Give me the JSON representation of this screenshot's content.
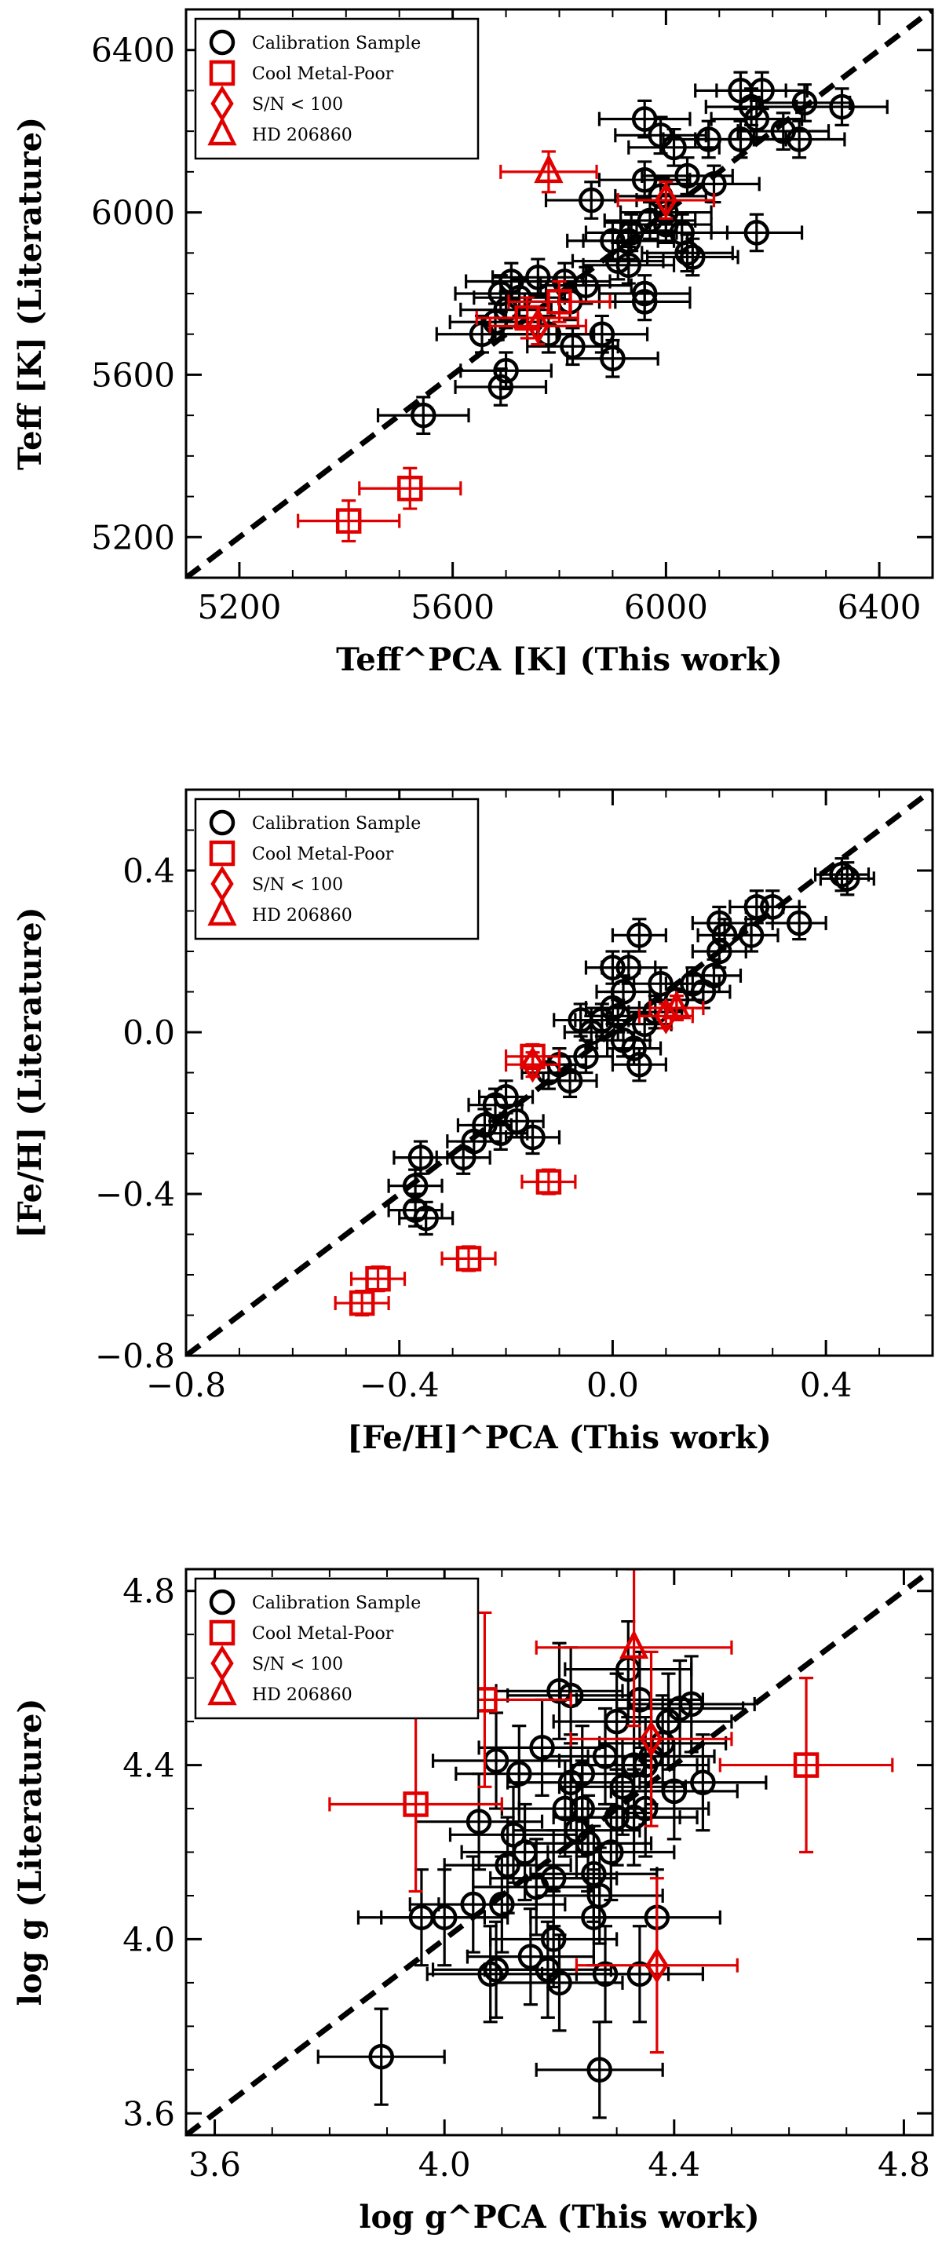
{
  "chart_data": [
    {
      "type": "scatter",
      "xlabel": "Teff^PCA [K] (This work)",
      "ylabel": "Teff [K] (Literature)",
      "xlim": [
        5100,
        6500
      ],
      "ylim": [
        5100,
        6500
      ],
      "xticks": [
        "5200",
        "5600",
        "6000",
        "6400"
      ],
      "yticks": [
        "5200",
        "5600",
        "6000",
        "6400"
      ],
      "one_to_one_line": true,
      "legend": [
        "Calibration Sample",
        "Cool Metal-Poor",
        "S/N < 100",
        "HD 206860"
      ],
      "series": [
        {
          "name": "Calibration Sample",
          "marker": "circle",
          "color": "#000000",
          "x_err": 85,
          "y_err": 45,
          "points": [
            [
              5545,
              5500
            ],
            [
              5690,
              5570
            ],
            [
              5700,
              5610
            ],
            [
              5655,
              5700
            ],
            [
              5680,
              5730
            ],
            [
              5700,
              5760
            ],
            [
              5725,
              5790
            ],
            [
              5690,
              5800
            ],
            [
              5710,
              5830
            ],
            [
              5760,
              5840
            ],
            [
              5810,
              5830
            ],
            [
              5820,
              5780
            ],
            [
              5850,
              5820
            ],
            [
              5880,
              5700
            ],
            [
              5900,
              5640
            ],
            [
              5825,
              5670
            ],
            [
              5780,
              5700
            ],
            [
              5960,
              5780
            ],
            [
              5960,
              5800
            ],
            [
              5930,
              5870
            ],
            [
              5900,
              5930
            ],
            [
              5935,
              5950
            ],
            [
              5970,
              5980
            ],
            [
              6000,
              5970
            ],
            [
              6030,
              5950
            ],
            [
              6040,
              5900
            ],
            [
              6050,
              5890
            ],
            [
              6170,
              5950
            ],
            [
              6000,
              6000
            ],
            [
              5990,
              6040
            ],
            [
              6040,
              6090
            ],
            [
              6090,
              6070
            ],
            [
              6015,
              6160
            ],
            [
              6080,
              6180
            ],
            [
              5860,
              6030
            ],
            [
              5960,
              6230
            ],
            [
              5990,
              6190
            ],
            [
              6140,
              6180
            ],
            [
              6170,
              6230
            ],
            [
              6220,
              6200
            ],
            [
              6250,
              6180
            ],
            [
              6160,
              6260
            ],
            [
              6180,
              6300
            ],
            [
              6140,
              6300
            ],
            [
              6260,
              6270
            ],
            [
              6330,
              6260
            ],
            [
              5960,
              6080
            ],
            [
              5930,
              5930
            ],
            [
              5910,
              5880
            ]
          ]
        },
        {
          "name": "Cool Metal-Poor",
          "marker": "square",
          "color": "#e00000",
          "x_err": 95,
          "y_err": 50,
          "points": [
            [
              5405,
              5240
            ],
            [
              5520,
              5320
            ],
            [
              5740,
              5740
            ],
            [
              5800,
              5780
            ]
          ]
        },
        {
          "name": "S/N < 100",
          "marker": "diamond",
          "color": "#e00000",
          "x_err": 90,
          "y_err": 45,
          "points": [
            [
              5760,
              5720
            ],
            [
              6000,
              6030
            ]
          ]
        },
        {
          "name": "HD 206860",
          "marker": "triangle",
          "color": "#e00000",
          "x_err": 90,
          "y_err": 50,
          "points": [
            [
              5780,
              6100
            ]
          ]
        }
      ]
    },
    {
      "type": "scatter",
      "xlabel": "[Fe/H]^PCA (This work)",
      "ylabel": "[Fe/H] (Literature)",
      "xlim": [
        -0.8,
        0.6
      ],
      "ylim": [
        -0.8,
        0.6
      ],
      "xticks": [
        "−0.8",
        "−0.4",
        "0.0",
        "0.4"
      ],
      "yticks": [
        "−0.8",
        "−0.4",
        "0.0",
        "0.4"
      ],
      "one_to_one_line": true,
      "legend": [
        "Calibration Sample",
        "Cool Metal-Poor",
        "S/N < 100",
        "HD 206860"
      ],
      "series": [
        {
          "name": "Calibration Sample",
          "marker": "circle",
          "color": "#000000",
          "x_err": 0.05,
          "y_err": 0.04,
          "points": [
            [
              -0.36,
              -0.31
            ],
            [
              -0.37,
              -0.38
            ],
            [
              -0.35,
              -0.46
            ],
            [
              -0.37,
              -0.44
            ],
            [
              -0.28,
              -0.31
            ],
            [
              -0.26,
              -0.27
            ],
            [
              -0.24,
              -0.23
            ],
            [
              -0.22,
              -0.18
            ],
            [
              -0.21,
              -0.25
            ],
            [
              -0.18,
              -0.22
            ],
            [
              -0.15,
              -0.26
            ],
            [
              -0.2,
              -0.16
            ],
            [
              -0.12,
              -0.1
            ],
            [
              -0.1,
              -0.08
            ],
            [
              -0.08,
              -0.12
            ],
            [
              -0.05,
              -0.06
            ],
            [
              -0.04,
              0.0
            ],
            [
              -0.02,
              0.03
            ],
            [
              0.0,
              0.06
            ],
            [
              0.01,
              0.04
            ],
            [
              0.02,
              0.1
            ],
            [
              0.03,
              0.16
            ],
            [
              0.05,
              0.24
            ],
            [
              0.0,
              0.16
            ],
            [
              0.02,
              -0.02
            ],
            [
              0.04,
              -0.04
            ],
            [
              0.05,
              -0.08
            ],
            [
              0.06,
              0.02
            ],
            [
              0.08,
              0.05
            ],
            [
              0.12,
              0.08
            ],
            [
              0.15,
              0.12
            ],
            [
              0.17,
              0.1
            ],
            [
              0.19,
              0.14
            ],
            [
              0.2,
              0.2
            ],
            [
              0.21,
              0.24
            ],
            [
              0.2,
              0.27
            ],
            [
              0.26,
              0.24
            ],
            [
              0.27,
              0.31
            ],
            [
              0.3,
              0.31
            ],
            [
              0.35,
              0.27
            ],
            [
              0.43,
              0.39
            ],
            [
              0.44,
              0.38
            ],
            [
              0.09,
              0.12
            ],
            [
              -0.06,
              0.03
            ]
          ]
        },
        {
          "name": "Cool Metal-Poor",
          "marker": "square",
          "color": "#e00000",
          "x_err": 0.05,
          "y_err": 0.03,
          "points": [
            [
              -0.47,
              -0.67
            ],
            [
              -0.44,
              -0.61
            ],
            [
              -0.27,
              -0.56
            ],
            [
              -0.12,
              -0.37
            ],
            [
              -0.15,
              -0.06
            ]
          ]
        },
        {
          "name": "S/N < 100",
          "marker": "diamond",
          "color": "#e00000",
          "x_err": 0.05,
          "y_err": 0.03,
          "points": [
            [
              -0.15,
              -0.08
            ],
            [
              0.1,
              0.04
            ]
          ]
        },
        {
          "name": "HD 206860",
          "marker": "triangle",
          "color": "#e00000",
          "x_err": 0.05,
          "y_err": 0.03,
          "points": [
            [
              0.12,
              0.06
            ]
          ]
        }
      ]
    },
    {
      "type": "scatter",
      "xlabel": "log g^PCA (This work)",
      "ylabel": "log g (Literature)",
      "xlim": [
        3.55,
        4.85
      ],
      "ylim": [
        3.55,
        4.85
      ],
      "xticks": [
        "3.6",
        "4.0",
        "4.4",
        "4.8"
      ],
      "yticks": [
        "3.6",
        "4.0",
        "4.4",
        "4.8"
      ],
      "one_to_one_line": true,
      "legend": [
        "Calibration Sample",
        "Cool Metal-Poor",
        "S/N < 100",
        "HD 206860"
      ],
      "series": [
        {
          "name": "Calibration Sample",
          "marker": "circle",
          "color": "#000000",
          "x_err": 0.11,
          "y_err": 0.11,
          "points": [
            [
              3.89,
              3.73
            ],
            [
              4.27,
              3.7
            ],
            [
              3.96,
              4.05
            ],
            [
              4.0,
              4.05
            ],
            [
              4.05,
              4.08
            ],
            [
              4.08,
              3.92
            ],
            [
              4.09,
              3.93
            ],
            [
              4.1,
              4.08
            ],
            [
              4.12,
              4.24
            ],
            [
              4.14,
              4.2
            ],
            [
              4.15,
              3.96
            ],
            [
              4.16,
              4.12
            ],
            [
              4.18,
              3.93
            ],
            [
              4.19,
              4.0
            ],
            [
              4.2,
              3.9
            ],
            [
              4.21,
              4.3
            ],
            [
              4.22,
              4.36
            ],
            [
              4.23,
              4.25
            ],
            [
              4.24,
              4.38
            ],
            [
              4.25,
              4.22
            ],
            [
              4.26,
              4.05
            ],
            [
              4.27,
              4.1
            ],
            [
              4.28,
              3.92
            ],
            [
              4.29,
              4.2
            ],
            [
              4.3,
              4.28
            ],
            [
              4.31,
              4.35
            ],
            [
              4.33,
              4.4
            ],
            [
              4.34,
              3.92
            ],
            [
              4.35,
              4.3
            ],
            [
              4.36,
              4.42
            ],
            [
              4.38,
              4.45
            ],
            [
              4.39,
              4.5
            ],
            [
              4.4,
              4.34
            ],
            [
              4.41,
              4.53
            ],
            [
              4.43,
              4.54
            ],
            [
              4.45,
              4.36
            ],
            [
              4.32,
              4.62
            ],
            [
              4.2,
              4.57
            ],
            [
              4.13,
              4.38
            ],
            [
              4.22,
              4.56
            ],
            [
              4.28,
              4.42
            ],
            [
              4.3,
              4.5
            ],
            [
              4.33,
              4.28
            ],
            [
              4.37,
              4.05
            ],
            [
              4.06,
              4.27
            ],
            [
              4.11,
              4.17
            ],
            [
              4.17,
              4.44
            ],
            [
              4.26,
              4.15
            ],
            [
              4.35,
              4.4
            ],
            [
              4.24,
              4.3
            ],
            [
              4.19,
              4.14
            ],
            [
              4.09,
              4.41
            ],
            [
              4.34,
              4.55
            ]
          ]
        },
        {
          "name": "Cool Metal-Poor",
          "marker": "square",
          "color": "#e00000",
          "x_err": 0.15,
          "y_err": 0.2,
          "points": [
            [
              3.95,
              4.31
            ],
            [
              4.07,
              4.55
            ],
            [
              4.63,
              4.4
            ]
          ]
        },
        {
          "name": "S/N < 100",
          "marker": "diamond",
          "color": "#e00000",
          "x_err": 0.14,
          "y_err": 0.2,
          "points": [
            [
              4.37,
              3.94
            ],
            [
              4.36,
              4.46
            ]
          ]
        },
        {
          "name": "HD 206860",
          "marker": "triangle",
          "color": "#e00000",
          "x_err": 0.17,
          "y_err": 0.18,
          "points": [
            [
              4.33,
              4.67
            ]
          ]
        }
      ]
    }
  ]
}
